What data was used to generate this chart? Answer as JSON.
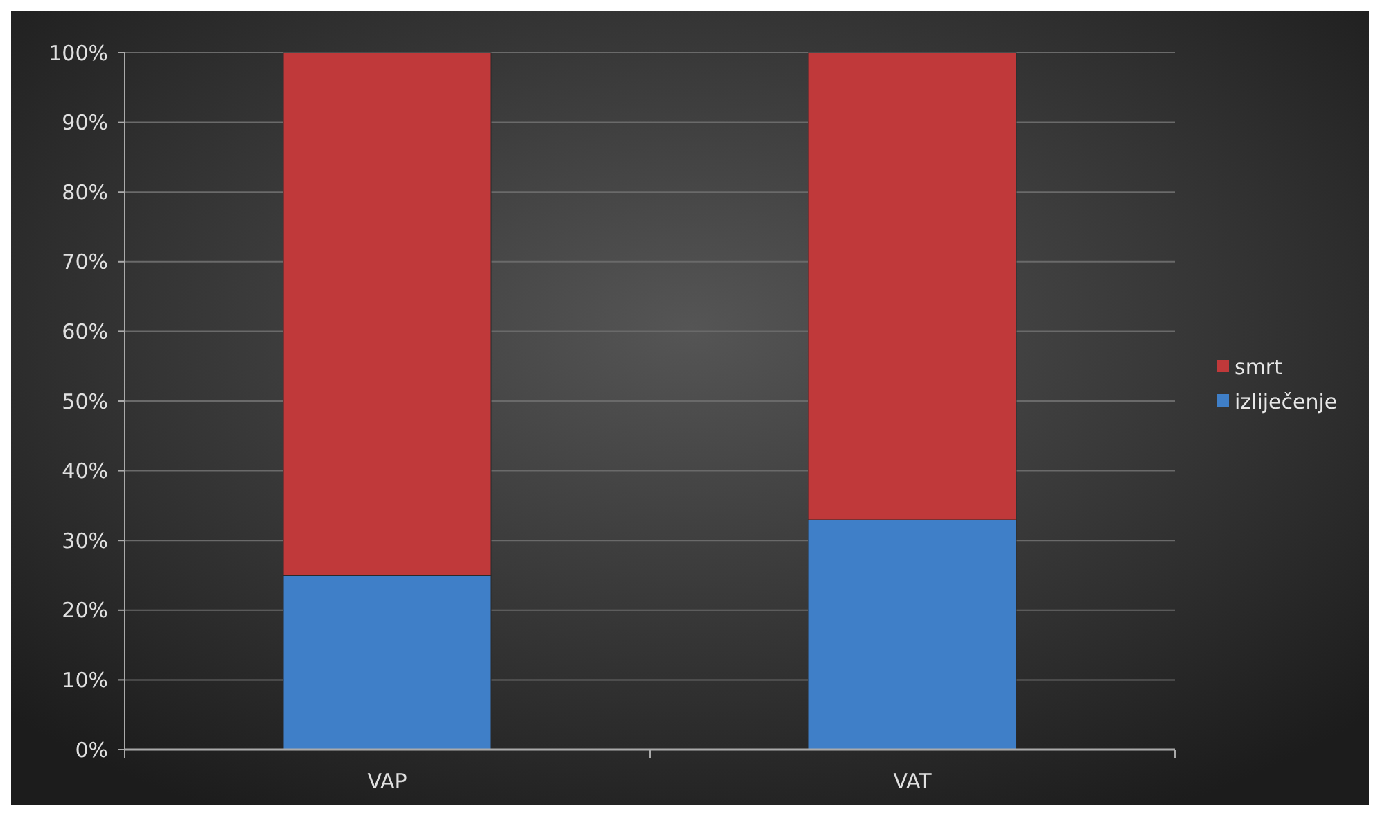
{
  "chart_data": {
    "type": "bar",
    "stacked": true,
    "categories": [
      "VAP",
      "VAT"
    ],
    "series": [
      {
        "name": "izliječenje",
        "color": "#3f7fc8",
        "values": [
          25,
          33
        ]
      },
      {
        "name": "smrt",
        "color": "#c0393a",
        "values": [
          75,
          67
        ]
      }
    ],
    "ylim": [
      0,
      100
    ],
    "yticks": [
      {
        "value": 0,
        "label": "0%"
      },
      {
        "value": 10,
        "label": "10%"
      },
      {
        "value": 20,
        "label": "20%"
      },
      {
        "value": 30,
        "label": "30%"
      },
      {
        "value": 40,
        "label": "40%"
      },
      {
        "value": 50,
        "label": "50%"
      },
      {
        "value": 60,
        "label": "60%"
      },
      {
        "value": 70,
        "label": "70%"
      },
      {
        "value": 80,
        "label": "80%"
      },
      {
        "value": 90,
        "label": "90%"
      },
      {
        "value": 100,
        "label": "100%"
      }
    ],
    "grid": "y",
    "legend": "right"
  }
}
